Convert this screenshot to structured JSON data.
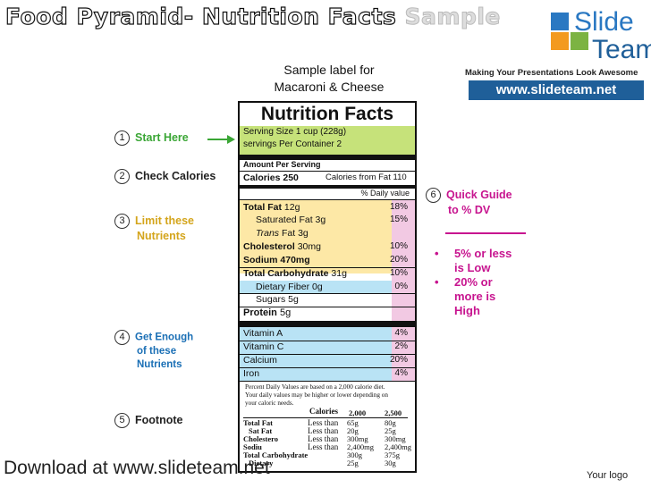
{
  "slide": {
    "title_part1": "Food Pyramid-",
    "title_part2": "Nutrition Facts",
    "title_part3": "Sample",
    "sample_label_line1": "Sample label for",
    "sample_label_line2": "Macaroni & Cheese",
    "download_text": "Download at www.slideteam.net",
    "your_logo": "Your logo"
  },
  "logo": {
    "word1": "Slide",
    "word2": "Team",
    "tagline": "Making Your Presentations Look Awesome",
    "url": "www.slideteam.net",
    "colors": {
      "blue": "#2a78c2",
      "orange": "#f39a1f",
      "dark_blue": "#1f5f99",
      "green": "#7cb342"
    }
  },
  "steps": [
    {
      "num": "1",
      "text": "Start Here",
      "color": "#3aa635"
    },
    {
      "num": "2",
      "text": "Check Calories",
      "color": "#222222"
    },
    {
      "num": "3",
      "text": "Limit these Nutrients",
      "line1": "Limit these",
      "line2": "Nutrients",
      "color": "#d4a51c"
    },
    {
      "num": "4",
      "text": "Get Enough of these Nutrients",
      "line1": "Get Enough",
      "line2": "of these",
      "line3": "Nutrients",
      "color": "#1a6fb5"
    },
    {
      "num": "5",
      "text": "Footnote",
      "color": "#222222"
    },
    {
      "num": "6",
      "text": "Quick Guide to % DV",
      "line1": "Quick Guide",
      "line2": "to % DV",
      "color": "#c7148f"
    }
  ],
  "quick_guide": {
    "bullet1_line1": "5% or less",
    "bullet1_line2": "is Low",
    "bullet2_line1": "20% or",
    "bullet2_line2": "more is",
    "bullet2_line3": "High",
    "bullet_char": "•"
  },
  "label": {
    "heading": "Nutrition Facts",
    "serving_size": "Serving Size 1 cup (228g)",
    "servings_per_container": "servings Per Container 2",
    "amount_per_serving": "Amount Per Serving",
    "calories": "Calories 250",
    "calories_label": "Calories",
    "calories_value": "250",
    "calories_from_fat": "Calories from Fat 110",
    "daily_value_header": "% Daily value",
    "nutrients": [
      {
        "name": "Total Fat",
        "amount": "12g",
        "pct": "18%"
      },
      {
        "name": "Saturated Fat",
        "amount": "3g",
        "pct": "15%"
      },
      {
        "name": "Trans",
        "suffix": "Fat 3g",
        "pct": ""
      },
      {
        "name": "Cholesterol",
        "amount": "30mg",
        "pct": "10%"
      },
      {
        "name": "Sodium 470mg",
        "amount": "",
        "pct": "20%"
      },
      {
        "name": "Total Carbohydrate",
        "amount": "31g",
        "pct": "10%"
      },
      {
        "name": "Dietary Fiber 0g",
        "amount": "",
        "pct": "0%"
      },
      {
        "name": "Sugars 5g",
        "amount": "",
        "pct": ""
      },
      {
        "name": "Protein",
        "amount": "5g",
        "pct": ""
      }
    ],
    "vitamins": [
      {
        "name": "Vitamin A",
        "pct": "4%"
      },
      {
        "name": "Vitamin C",
        "pct": "2%"
      },
      {
        "name": "Calcium",
        "pct": "20%"
      },
      {
        "name": "Iron",
        "pct": "4%"
      }
    ],
    "footnote_line1": "Percent Daily Values are based on a 2,000 calorie diet.",
    "footnote_line2": "Your daily values may be higher or lower depending on",
    "footnote_line3": "your caloric needs.",
    "table": {
      "header": [
        "Calories",
        "2,000",
        "2,500"
      ],
      "rows": [
        [
          "Total Fat",
          "Less than",
          "65g",
          "80g"
        ],
        [
          "Sat Fat",
          "Less than",
          "20g",
          "25g"
        ],
        [
          "Cholestero",
          "Less than",
          "300mg",
          "300mg"
        ],
        [
          "Sodiu",
          "Less than",
          "2,400mg",
          "2,400mg"
        ],
        [
          "Total Carbohydrate",
          "",
          "300g",
          "375g"
        ],
        [
          "Dietary",
          "",
          "25g",
          "30g"
        ]
      ]
    }
  }
}
